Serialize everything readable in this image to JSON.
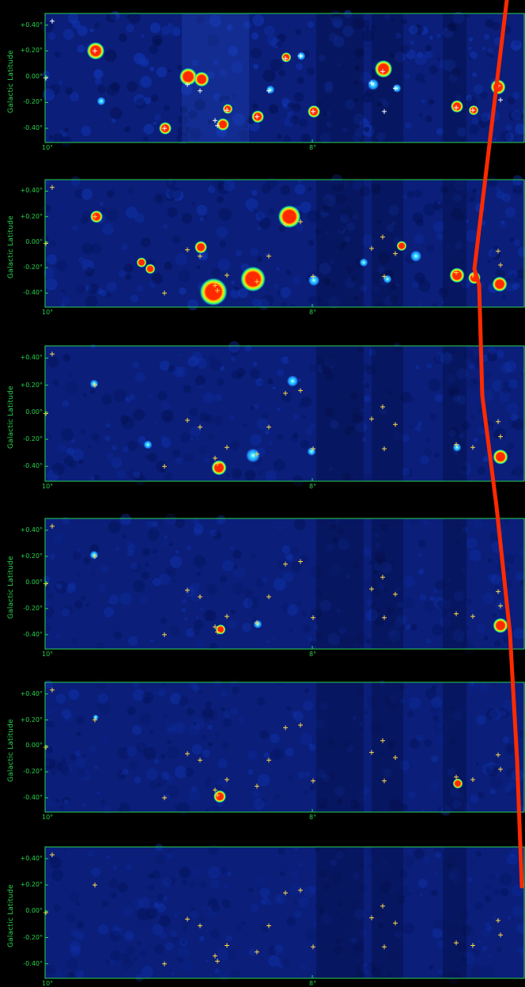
{
  "panels": [
    {
      "y_label": "Galactic Latitude",
      "x_ticks": [
        "10°",
        "8°"
      ],
      "y_ticks": [
        "+0.40°",
        "+0.20°",
        "0.00°",
        "-0.20°",
        "-0.40°"
      ]
    },
    {
      "y_label": "Galactic Latitude",
      "x_ticks": [
        "10°",
        "8°"
      ],
      "y_ticks": [
        "+0.40°",
        "+0.20°",
        "0.00°",
        "-0.20°",
        "-0.40°"
      ]
    },
    {
      "y_label": "Galactic Latitude",
      "x_ticks": [
        "10°",
        "8°"
      ],
      "y_ticks": [
        "+0.40°",
        "+0.20°",
        "0.00°",
        "-0.20°",
        "-0.40°"
      ]
    },
    {
      "y_label": "Galactic Latitude",
      "x_ticks": [
        "10°",
        "8°"
      ],
      "y_ticks": [
        "+0.40°",
        "+0.20°",
        "0.00°",
        "-0.20°",
        "-0.40°"
      ]
    },
    {
      "y_label": "Galactic Latitude",
      "x_ticks": [
        "10°",
        "8°"
      ],
      "y_ticks": [
        "+0.40°",
        "+0.20°",
        "0.00°",
        "-0.20°",
        "-0.40°"
      ]
    },
    {
      "y_label": "Galactic Latitude",
      "x_ticks": [
        "10°",
        "8°"
      ],
      "y_ticks": [
        "+0.40°",
        "+0.20°",
        "0.00°",
        "-0.20°",
        "-0.40°"
      ]
    }
  ],
  "colors": {
    "background": "#000000",
    "frame": "#29d34f",
    "map_dark": "#000018",
    "map_blue": "#0a1e7a",
    "map_bright": "#1e8cff",
    "source_red": "#ff2a00",
    "source_yellow": "#ffe600",
    "marker_yellow": "#ffd84a",
    "stripe_red": "#ff2a00"
  }
}
